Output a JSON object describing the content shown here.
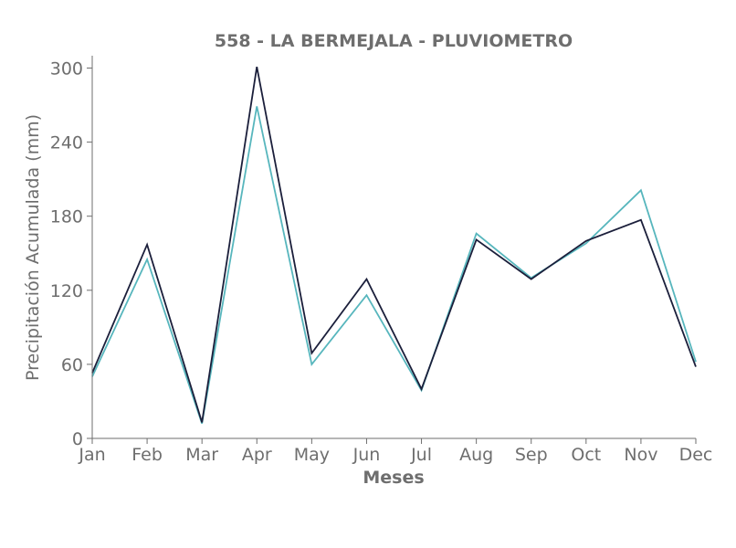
{
  "colors": {
    "text": "#6e6e6e",
    "axis": "#6e6e6e",
    "background": "#ffffff"
  },
  "chart_data": {
    "type": "line",
    "title": "558 - LA BERMEJALA - PLUVIOMETRO",
    "xlabel": "Meses",
    "ylabel": "Precipitación Acumulada (mm)",
    "categories": [
      "Jan",
      "Feb",
      "Mar",
      "Apr",
      "May",
      "Jun",
      "Jul",
      "Aug",
      "Sep",
      "Oct",
      "Nov",
      "Dec"
    ],
    "ylim": [
      0,
      310
    ],
    "yticks": [
      0,
      60,
      120,
      180,
      240,
      300
    ],
    "grid": false,
    "legend": "none",
    "series": [
      {
        "color": "#1b1f3b",
        "values": [
          53,
          157,
          13,
          301,
          69,
          129,
          40,
          161,
          129,
          160,
          177,
          58
        ]
      },
      {
        "color": "#57b6bd",
        "values": [
          50,
          145,
          12,
          269,
          60,
          116,
          39,
          166,
          130,
          158,
          201,
          62
        ]
      }
    ]
  }
}
